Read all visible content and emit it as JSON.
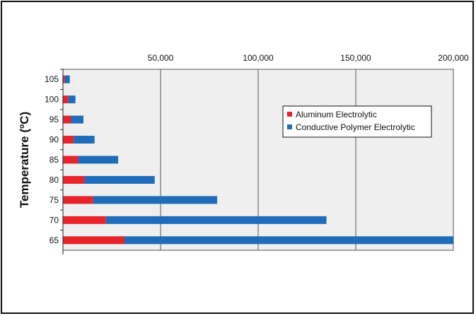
{
  "chart_data": {
    "type": "bar",
    "orientation": "horizontal",
    "stacked": true,
    "categories": [
      "105",
      "100",
      "95",
      "90",
      "85",
      "80",
      "75",
      "70",
      "65"
    ],
    "series": [
      {
        "name": "Aluminum Electrolytic",
        "color": "#e8242b",
        "values": [
          1000,
          2800,
          4000,
          5500,
          7800,
          11000,
          15500,
          22000,
          31500
        ]
      },
      {
        "name": "Conductive Polymer Electrolytic",
        "color": "#1f6cb8",
        "values": [
          2500,
          3600,
          6500,
          10700,
          20500,
          36000,
          63500,
          113000,
          168500
        ]
      }
    ],
    "title": "",
    "xlabel": "",
    "ylabel": "Temperature (ºC)",
    "xlim": [
      0,
      200000
    ],
    "x_tick_labels": [
      "50,000",
      "100,000",
      "150,000",
      "200,000"
    ],
    "x_tick_values": [
      50000,
      100000,
      150000,
      200000
    ],
    "grid": true,
    "legend_position": "top-right"
  }
}
